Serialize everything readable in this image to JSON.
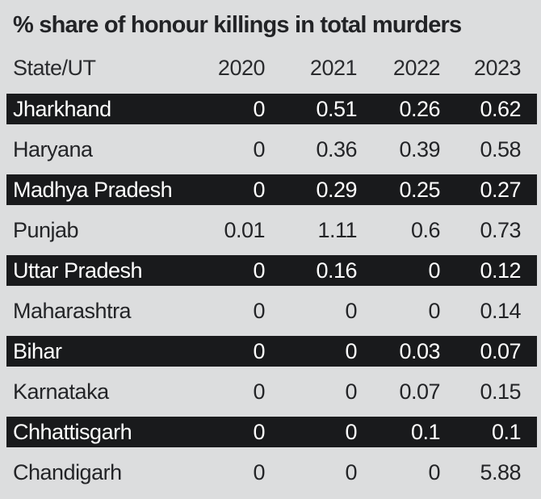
{
  "title": "% share of honour killings in total murders",
  "colors": {
    "background": "#dcddde",
    "highlight_row_bg": "#191a1c",
    "highlight_row_text": "#ffffff",
    "text": "#232427"
  },
  "chart_data": {
    "type": "table",
    "title": "% share of honour killings in total murders",
    "columns": [
      "State/UT",
      "2020",
      "2021",
      "2022",
      "2023"
    ],
    "rows": [
      {
        "state": "Jharkhand",
        "values": [
          "0",
          "0.51",
          "0.26",
          "0.62"
        ],
        "highlight": true
      },
      {
        "state": "Haryana",
        "values": [
          "0",
          "0.36",
          "0.39",
          "0.58"
        ],
        "highlight": false
      },
      {
        "state": "Madhya Pradesh",
        "values": [
          "0",
          "0.29",
          "0.25",
          "0.27"
        ],
        "highlight": true
      },
      {
        "state": "Punjab",
        "values": [
          "0.01",
          "1.11",
          "0.6",
          "0.73"
        ],
        "highlight": false
      },
      {
        "state": "Uttar Pradesh",
        "values": [
          "0",
          "0.16",
          "0",
          "0.12"
        ],
        "highlight": true
      },
      {
        "state": "Maharashtra",
        "values": [
          "0",
          "0",
          "0",
          "0.14"
        ],
        "highlight": false
      },
      {
        "state": "Bihar",
        "values": [
          "0",
          "0",
          "0.03",
          "0.07"
        ],
        "highlight": true
      },
      {
        "state": "Karnataka",
        "values": [
          "0",
          "0",
          "0.07",
          "0.15"
        ],
        "highlight": false
      },
      {
        "state": "Chhattisgarh",
        "values": [
          "0",
          "0",
          "0.1",
          "0.1"
        ],
        "highlight": true
      },
      {
        "state": "Chandigarh",
        "values": [
          "0",
          "0",
          "0",
          "5.88"
        ],
        "highlight": false
      }
    ]
  }
}
